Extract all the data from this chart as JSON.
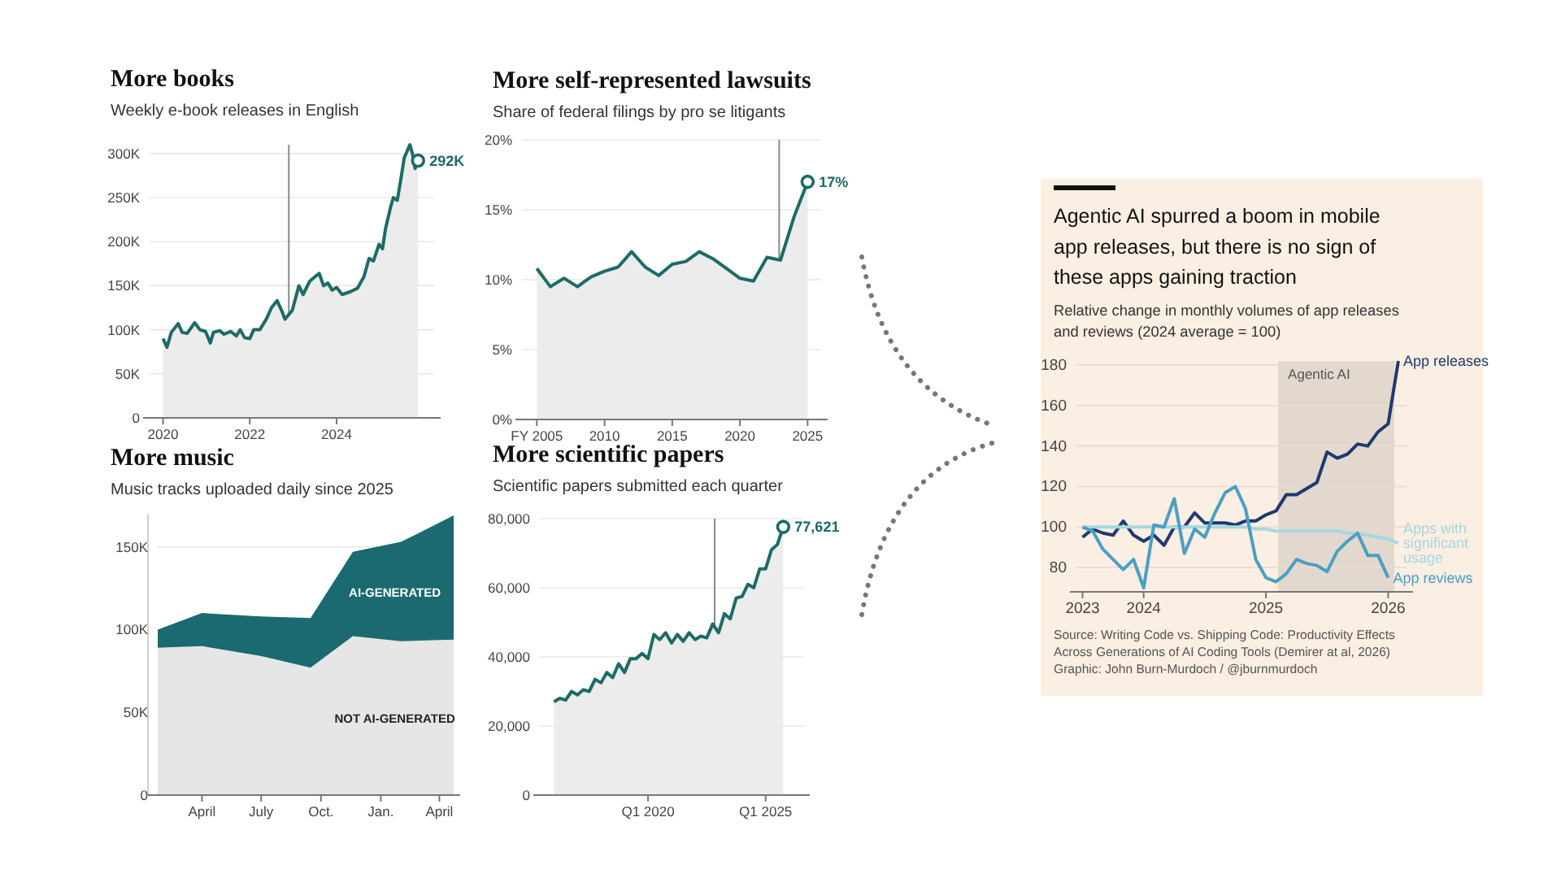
{
  "chart_data": [
    {
      "type": "area",
      "title": "More books",
      "subtitle": "Weekly e-book releases in English",
      "x": [
        2020,
        2020.09,
        2020.19,
        2020.35,
        2020.44,
        2020.56,
        2020.73,
        2020.85,
        2020.98,
        2021.09,
        2021.16,
        2021.31,
        2021.4,
        2021.56,
        2021.69,
        2021.78,
        2021.88,
        2022,
        2022.09,
        2022.23,
        2022.38,
        2022.5,
        2022.63,
        2022.75,
        2022.81,
        2022.98,
        2023.13,
        2023.23,
        2023.38,
        2023.5,
        2023.6,
        2023.7,
        2023.8,
        2023.9,
        2024,
        2024.13,
        2024.31,
        2024.48,
        2024.63,
        2024.75,
        2024.85,
        2024.98,
        2025.06,
        2025.13,
        2025.25,
        2025.31,
        2025.4,
        2025.48,
        2025.56,
        2025.69,
        2025.75,
        2025.81,
        2025.88
      ],
      "values": [
        90000,
        80000,
        97000,
        107000,
        97000,
        96000,
        108000,
        100000,
        98000,
        85000,
        97000,
        99000,
        95000,
        98000,
        93000,
        100000,
        91000,
        90000,
        100000,
        100000,
        112000,
        125000,
        133000,
        120000,
        112000,
        122000,
        150000,
        140000,
        155000,
        160000,
        164000,
        150000,
        153000,
        145000,
        148000,
        140000,
        143000,
        147000,
        160000,
        181000,
        178000,
        197000,
        192000,
        215000,
        240000,
        250000,
        247000,
        270000,
        295000,
        310000,
        300000,
        283000,
        292000
      ],
      "value_labels": [
        null,
        null,
        null,
        null,
        null,
        null,
        null,
        null,
        null,
        null,
        null,
        null,
        null,
        null,
        null,
        null,
        null,
        null,
        null,
        null,
        null,
        null,
        null,
        null,
        null,
        null,
        null,
        null,
        null,
        null,
        null,
        null,
        null,
        null,
        null,
        null,
        null,
        null,
        null,
        null,
        null,
        null,
        null,
        null,
        null,
        null,
        null,
        null,
        null,
        null,
        null,
        null,
        "292K"
      ],
      "color": "#1d6b66",
      "xlim": [
        2019.69,
        2026.25
      ],
      "xticks": [
        2020,
        2022,
        2024
      ],
      "ylim": [
        0,
        310000
      ],
      "yticks": [
        {
          "value": 0,
          "label": "0"
        },
        {
          "value": 50000,
          "label": "50K"
        },
        {
          "value": 100000,
          "label": "100K"
        },
        {
          "value": 150000,
          "label": "150K"
        },
        {
          "value": 200000,
          "label": "200K"
        },
        {
          "value": 250000,
          "label": "250K"
        },
        {
          "value": 300000,
          "label": "300K"
        }
      ],
      "ref_lines": [
        {
          "axis": "x",
          "value": 2022.9,
          "color": "#8a8a8a"
        }
      ],
      "grid": "y"
    },
    {
      "type": "area",
      "title": "More self-represented lawsuits",
      "subtitle": "Share of federal filings by pro se litigants",
      "x": [
        2005,
        2006,
        2007,
        2008,
        2009,
        2010,
        2011,
        2012,
        2013,
        2014,
        2015,
        2016,
        2017,
        2018,
        2019,
        2020,
        2021,
        2022,
        2023,
        2024,
        2025
      ],
      "values": [
        10.8,
        9.5,
        10.1,
        9.5,
        10.2,
        10.6,
        10.9,
        12,
        10.9,
        10.3,
        11.1,
        11.3,
        12,
        11.5,
        10.8,
        10.1,
        9.9,
        11.6,
        11.4,
        14.5,
        17
      ],
      "value_labels": [
        null,
        null,
        null,
        null,
        null,
        null,
        null,
        null,
        null,
        null,
        null,
        null,
        null,
        null,
        null,
        null,
        null,
        null,
        null,
        null,
        "17%"
      ],
      "color": "#1d6b66",
      "xlim": [
        2003.9,
        2026
      ],
      "xticks": [
        {
          "value": 2005,
          "label": "FY 2005"
        },
        2010,
        2015,
        2020,
        2025
      ],
      "ylim": [
        0,
        20
      ],
      "yticks": [
        {
          "value": 0,
          "label": "0%"
        },
        {
          "value": 5,
          "label": "5%"
        },
        {
          "value": 10,
          "label": "10%"
        },
        {
          "value": 15,
          "label": "15%"
        },
        {
          "value": 20,
          "label": "20%"
        }
      ],
      "ref_lines": [
        {
          "axis": "x",
          "value": 2022.9,
          "color": "#8a8a8a"
        }
      ],
      "grid": "y"
    },
    {
      "type": "area",
      "stacked": true,
      "title": "More music",
      "subtitle": "Music tracks uploaded daily since 2025",
      "x": [
        "2025-01-23",
        "2025-04-01",
        "2025-07-01",
        "2025-09-15",
        "2025-11-19",
        "2026-02-01",
        "2026-04-23"
      ],
      "series": [
        {
          "name": "NOT AI-GENERATED",
          "color": "#e6e6e6",
          "values": [
            89000,
            90000,
            84000,
            77000,
            96000,
            93000,
            94000
          ]
        },
        {
          "name": "AI-GENERATED",
          "color": "#1a6a70",
          "values": [
            11000,
            20000,
            24000,
            30000,
            51000,
            60000,
            75000
          ]
        }
      ],
      "xlim": [
        "2025-01-23",
        "2026-04-23"
      ],
      "xticks": [
        {
          "value": "2025-04-01",
          "label": "April"
        },
        {
          "value": "2025-07-01",
          "label": "July"
        },
        {
          "value": "2025-10-01",
          "label": "Oct."
        },
        {
          "value": "2026-01-01",
          "label": "Jan."
        },
        {
          "value": "2026-04-01",
          "label": "April"
        }
      ],
      "ylim": [
        0,
        170000
      ],
      "yticks": [
        {
          "value": 0,
          "label": "0"
        },
        {
          "value": 50000,
          "label": "50K"
        },
        {
          "value": 100000,
          "label": "100K"
        },
        {
          "value": 150000,
          "label": "150K"
        }
      ],
      "grid": "y"
    },
    {
      "type": "area",
      "title": "More scientific papers",
      "subtitle": "Scientific papers submitted each quarter",
      "x": [
        "2016-01",
        "2016-04",
        "2016-07",
        "2016-10",
        "2017-01",
        "2017-04",
        "2017-07",
        "2017-10",
        "2018-01",
        "2018-04",
        "2018-07",
        "2018-10",
        "2019-01",
        "2019-04",
        "2019-07",
        "2019-10",
        "2020-01",
        "2020-04",
        "2020-07",
        "2020-10",
        "2021-01",
        "2021-04",
        "2021-07",
        "2021-10",
        "2022-01",
        "2022-04",
        "2022-07",
        "2022-10",
        "2023-01",
        "2023-04",
        "2023-07",
        "2023-10",
        "2024-01",
        "2024-04",
        "2024-07",
        "2024-10",
        "2025-01",
        "2025-04",
        "2025-07",
        "2025-10"
      ],
      "values": [
        27000,
        28000,
        27500,
        30000,
        29000,
        30500,
        30000,
        33500,
        32500,
        35500,
        34000,
        38000,
        35500,
        39500,
        39500,
        41000,
        39500,
        46500,
        45000,
        47000,
        44000,
        46500,
        44500,
        47000,
        45000,
        46000,
        45500,
        49500,
        47000,
        52500,
        51000,
        57000,
        57500,
        61000,
        60000,
        65500,
        65500,
        71000,
        72500,
        77621
      ],
      "value_labels": [
        null,
        null,
        null,
        null,
        null,
        null,
        null,
        null,
        null,
        null,
        null,
        null,
        null,
        null,
        null,
        null,
        null,
        null,
        null,
        null,
        null,
        null,
        null,
        null,
        null,
        null,
        null,
        null,
        null,
        null,
        null,
        null,
        null,
        null,
        null,
        null,
        null,
        null,
        null,
        "77,621"
      ],
      "color": "#1d6b66",
      "xlim": [
        "2015-05-27",
        "2026-08-08"
      ],
      "xticks": [
        {
          "value": "2020-01",
          "label": "Q1 2020"
        },
        {
          "value": "2025-01",
          "label": "Q1 2025"
        }
      ],
      "ylim": [
        0,
        80000
      ],
      "yticks": [
        {
          "value": 0,
          "label": "0"
        },
        {
          "value": 20000,
          "label": "20,000"
        },
        {
          "value": 40000,
          "label": "40,000"
        },
        {
          "value": 60000,
          "label": "60,000"
        },
        {
          "value": 80000,
          "label": "80,000"
        }
      ],
      "ref_lines": [
        {
          "axis": "x",
          "value": "2022-11-01",
          "color": "#8a8a8a"
        }
      ],
      "grid": "y"
    },
    {
      "type": "line",
      "title": "Agentic AI spurred a boom in mobile app releases, but there is no sign of these apps gaining traction",
      "subtitle": "Relative change in monthly volumes of app releases and reviews (2024 average = 100)",
      "x": [
        2023.5,
        2023.583,
        2023.667,
        2023.75,
        2023.833,
        2023.917,
        2024,
        2024.083,
        2024.167,
        2024.25,
        2024.333,
        2024.417,
        2024.5,
        2024.583,
        2024.667,
        2024.75,
        2024.833,
        2024.917,
        2025,
        2025.083,
        2025.167,
        2025.25,
        2025.333,
        2025.417,
        2025.5,
        2025.583,
        2025.667,
        2025.75,
        2025.833,
        2025.917,
        2026,
        2026.083
      ],
      "series": [
        {
          "name": "App releases",
          "color": "#1e3a6e",
          "values": [
            95,
            99,
            97,
            96,
            103,
            96,
            93,
            96,
            91,
            100,
            100,
            107,
            102,
            102,
            102,
            101,
            103,
            103,
            106,
            108,
            116,
            116,
            119,
            122,
            137,
            134,
            136,
            141,
            140,
            147,
            151,
            182
          ]
        },
        {
          "name": "Apps with significant usage",
          "color": "#a6d8e0",
          "values": [
            100,
            100,
            100,
            100,
            100,
            100,
            100,
            100,
            100,
            100,
            100,
            100,
            100,
            100,
            100,
            100,
            100,
            99,
            99,
            98,
            98,
            98,
            98,
            98,
            98,
            98,
            97,
            97,
            96,
            95,
            94,
            92
          ]
        },
        {
          "name": "App reviews",
          "color": "#4a9fc4",
          "values": [
            100,
            98,
            89,
            84,
            79,
            84,
            70,
            101,
            100,
            114,
            87,
            99,
            95,
            107,
            117,
            120,
            109,
            84,
            75,
            73,
            77,
            84,
            82,
            81,
            78,
            88,
            93,
            97,
            86,
            86,
            75,
            null
          ]
        }
      ],
      "xlim": [
        2023.45,
        2026.15
      ],
      "xticks": [
        {
          "value": 2023.5,
          "label": "2023"
        },
        2024,
        2025,
        2026
      ],
      "ylim": [
        68,
        182
      ],
      "yticks": [
        80,
        100,
        120,
        140,
        160,
        180
      ],
      "bands": [
        {
          "axis": "x",
          "from": 2025.1,
          "to": 2026.05,
          "label": "Agentic AI",
          "color": "#e2d8ce"
        }
      ],
      "grid": "y",
      "annotations": [
        "Source: Writing Code vs. Shipping Code: Productivity Effects Across Generations of AI Coding Tools (Demirer at al, 2026)",
        "Graphic: John Burn-Murdoch / @jburnmurdoch"
      ]
    }
  ]
}
